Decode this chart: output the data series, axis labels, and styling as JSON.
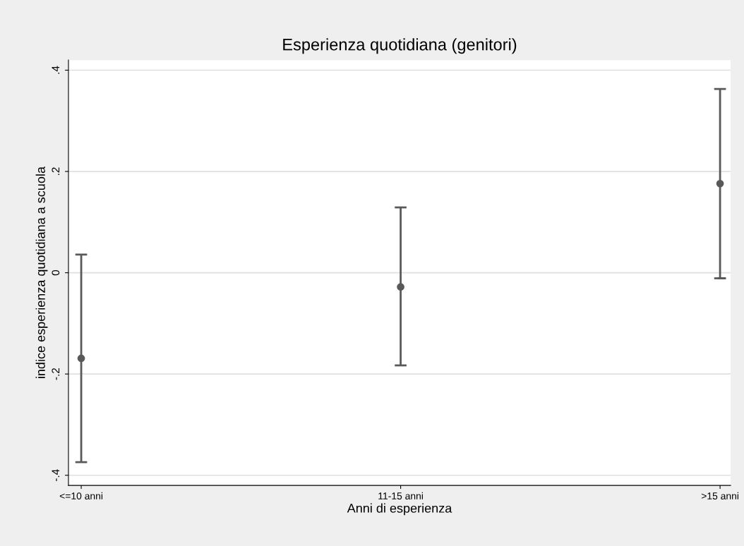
{
  "chart_data": {
    "type": "scatter",
    "title": "Esperienza quotidiana (genitori)",
    "xlabel": "Anni di esperienza",
    "ylabel": "indice esperienza quotidiana a scuola",
    "categories": [
      "<=10 anni",
      "11-15 anni",
      ">15 anni"
    ],
    "values": [
      -0.169,
      -0.028,
      0.176
    ],
    "errors": [
      [
        -0.374,
        0.036
      ],
      [
        -0.183,
        0.129
      ],
      [
        -0.011,
        0.363
      ]
    ],
    "color": "#595959",
    "marker": "circle",
    "ylim": [
      -0.42,
      0.42
    ],
    "yticks": [
      {
        "value": -0.4,
        "label": "-.4"
      },
      {
        "value": -0.2,
        "label": "-.2"
      },
      0,
      {
        "value": 0.2,
        "label": ".2"
      },
      {
        "value": 0.4,
        "label": ".4"
      }
    ],
    "grid": "y",
    "legend": false
  }
}
